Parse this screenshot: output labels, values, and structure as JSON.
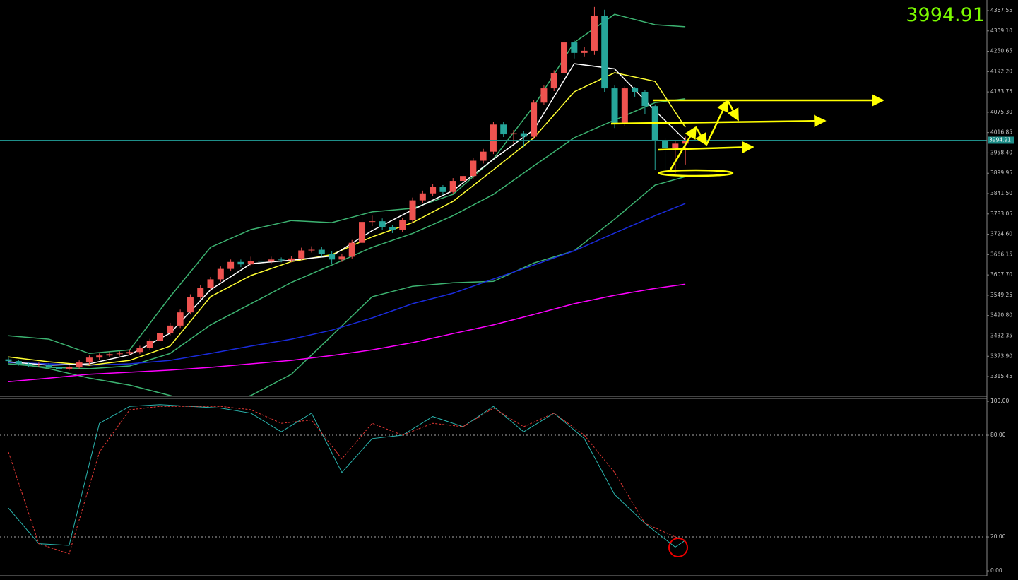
{
  "chart_data": [
    {
      "type": "candlestick",
      "open": [
        3365,
        3360,
        3352,
        3348,
        3350,
        3344,
        3338,
        3342,
        3356,
        3370,
        3376,
        3380,
        3382,
        3386,
        3398,
        3418,
        3440,
        3462,
        3500,
        3545,
        3570,
        3595,
        3625,
        3645,
        3638,
        3648,
        3646,
        3652,
        3650,
        3655,
        3678,
        3680,
        3668,
        3652,
        3660,
        3700,
        3760,
        3762,
        3745,
        3738,
        3765,
        3822,
        3842,
        3860,
        3846,
        3878,
        3892,
        3936,
        3962,
        4040,
        4012,
        4015,
        4005,
        4103,
        4144,
        4188,
        4276,
        4246,
        4252,
        4353,
        4144,
        4042,
        4144,
        4134,
        4093,
        3992,
        3972,
        3985
      ],
      "high": [
        3370,
        3364,
        3356,
        3356,
        3354,
        3348,
        3348,
        3362,
        3376,
        3382,
        3386,
        3388,
        3392,
        3404,
        3424,
        3446,
        3470,
        3508,
        3552,
        3578,
        3602,
        3632,
        3652,
        3652,
        3660,
        3654,
        3660,
        3658,
        3662,
        3686,
        3690,
        3688,
        3675,
        3668,
        3708,
        3775,
        3778,
        3770,
        3752,
        3772,
        3830,
        3850,
        3868,
        3866,
        3886,
        3900,
        3944,
        3970,
        4048,
        4048,
        4024,
        4022,
        4110,
        4152,
        4196,
        4284,
        4282,
        4262,
        4378,
        4370,
        4152,
        4150,
        4148,
        4140,
        4098,
        4000,
        3995,
        4005
      ],
      "low": [
        3354,
        3347,
        3342,
        3343,
        3339,
        3332,
        3333,
        3337,
        3350,
        3364,
        3371,
        3375,
        3377,
        3380,
        3392,
        3412,
        3434,
        3455,
        3494,
        3538,
        3562,
        3588,
        3618,
        3630,
        3632,
        3640,
        3638,
        3644,
        3644,
        3650,
        3672,
        3660,
        3640,
        3645,
        3655,
        3694,
        3748,
        3736,
        3728,
        3730,
        3758,
        3815,
        3835,
        3838,
        3840,
        3870,
        3885,
        3928,
        3955,
        4004,
        3985,
        3975,
        3998,
        4096,
        4136,
        4180,
        4230,
        4236,
        4240,
        4134,
        4030,
        4035,
        4120,
        4070,
        3910,
        3895,
        3900,
        3925
      ],
      "close": [
        3360,
        3352,
        3348,
        3350,
        3344,
        3338,
        3342,
        3356,
        3370,
        3376,
        3380,
        3382,
        3386,
        3398,
        3418,
        3440,
        3462,
        3500,
        3545,
        3570,
        3595,
        3625,
        3645,
        3638,
        3648,
        3646,
        3652,
        3650,
        3655,
        3678,
        3680,
        3668,
        3652,
        3660,
        3700,
        3760,
        3762,
        3745,
        3738,
        3765,
        3822,
        3842,
        3860,
        3846,
        3878,
        3892,
        3936,
        3962,
        4040,
        4012,
        4015,
        4005,
        4103,
        4144,
        4188,
        4276,
        4246,
        4252,
        4353,
        4144,
        4042,
        4144,
        4134,
        4093,
        3992,
        3972,
        3985,
        3994.91
      ],
      "up_color": "#ef5350",
      "down_color": "#26a69a",
      "xlim": [
        -0.84,
        96.85
      ],
      "ylim": [
        3260.7,
        4398.0
      ],
      "yticks": [
        4367.55,
        {
          "value": 4309.1,
          "label": "4309.10"
        },
        4250.65,
        {
          "value": 4192.2,
          "label": "4192.20"
        },
        4133.75,
        {
          "value": 4075.3,
          "label": "4075.30"
        },
        4016.85,
        {
          "value": 3958.4,
          "label": "3958.40"
        },
        3899.95,
        {
          "value": 3841.5,
          "label": "3841.50"
        },
        3783.05,
        {
          "value": 3724.6,
          "label": "3724.60"
        },
        3666.15,
        {
          "value": 3607.7,
          "label": "3607.70"
        },
        3549.25,
        {
          "value": 3490.8,
          "label": "3490.80"
        },
        3432.35,
        {
          "value": 3373.9,
          "label": "3373.90"
        },
        3315.45
      ],
      "current_price": 3994.91,
      "indicators": {
        "x": [
          0,
          4,
          8,
          12,
          16,
          20,
          24,
          28,
          32,
          36,
          40,
          44,
          48,
          52,
          56,
          60,
          64,
          67
        ],
        "series": [
          {
            "color": "#3cb371",
            "values": [
              3433,
              3423,
              3382,
              3392,
              3545,
              3687,
              3738,
              3764,
              3758,
              3789,
              3799,
              3839,
              3941,
              4093,
              4276,
              4357,
              4327,
              4321
            ]
          },
          {
            "color": "#3cb371",
            "values": [
              3352,
              3342,
              3338,
              3346,
              3382,
              3464,
              3525,
              3586,
              3636,
              3687,
              3727,
              3778,
              3839,
              3921,
              4002,
              4053,
              4103,
              4114
            ]
          },
          {
            "color": "#3cb371",
            "values": [
              3358,
              3338,
              3311,
              3291,
              3261,
              3230,
              3261,
              3322,
              3433,
              3545,
              3575,
              3585,
              3589,
              3642,
              3677,
              3768,
              3866,
              3890
            ]
          },
          {
            "color": "#ff00ff",
            "values": [
              3301,
              3311,
              3322,
              3328,
              3334,
              3342,
              3352,
              3362,
              3376,
              3392,
              3413,
              3439,
              3464,
              3494,
              3525,
              3549,
              3569,
              3581
            ]
          },
          {
            "color": "#1a2bdc",
            "values": [
              3356,
              3352,
              3348,
              3352,
              3362,
              3382,
              3403,
              3423,
              3449,
              3484,
              3525,
              3555,
              3596,
              3636,
              3677,
              3728,
              3778,
              3813
            ]
          },
          {
            "color": "#ffff33",
            "values": [
              3372,
              3358,
              3348,
              3362,
              3403,
              3545,
              3606,
              3646,
              3666,
              3717,
              3758,
              3819,
              3910,
              4002,
              4134,
              4189,
              4164,
              4032
            ]
          },
          {
            "color": "#ffffff",
            "values": [
              3358,
              3348,
              3352,
              3378,
              3440,
              3565,
              3640,
              3650,
              3662,
              3735,
              3795,
              3850,
              3940,
              4025,
              4215,
              4200,
              4080,
              3995
            ]
          }
        ]
      }
    },
    {
      "type": "line",
      "x": [
        0,
        3,
        6,
        9,
        12,
        15,
        18,
        21,
        24,
        27,
        30,
        33,
        36,
        39,
        42,
        45,
        48,
        51,
        54,
        57,
        60,
        63,
        66,
        67
      ],
      "xlim": [
        -0.84,
        96.85
      ],
      "ylim": [
        -2.9,
        102.1
      ],
      "yticks": [
        {
          "value": 100,
          "label": "100.00"
        },
        {
          "value": 80,
          "label": "80.00"
        },
        {
          "value": 20,
          "label": "20.00"
        },
        {
          "value": 0,
          "label": "0.00"
        }
      ],
      "levels": [
        20,
        80
      ],
      "series": [
        {
          "color": "#2bb7b0",
          "values": [
            37,
            16,
            15,
            87,
            97,
            98,
            97,
            96,
            93,
            82,
            93,
            58,
            78,
            80,
            91,
            85,
            97,
            82,
            93,
            78,
            45,
            28,
            14,
            18
          ]
        },
        {
          "color": "#e53935",
          "dash": true,
          "values": [
            70,
            16,
            10,
            70,
            95,
            97,
            97,
            97,
            95,
            87,
            89,
            66,
            87,
            80,
            87,
            85,
            96,
            85,
            93,
            80,
            58,
            28,
            20,
            18
          ]
        }
      ]
    }
  ]
}
